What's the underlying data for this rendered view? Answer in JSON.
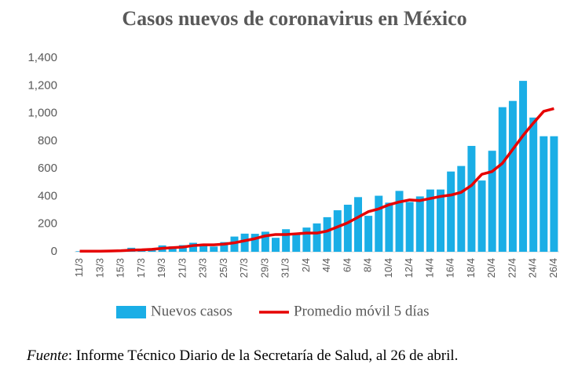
{
  "chart_data": {
    "type": "bar_line",
    "title": "Casos nuevos de coronavirus en México",
    "categories": [
      "11/3",
      null,
      "13/3",
      null,
      "15/3",
      null,
      "17/3",
      null,
      "19/3",
      null,
      "21/3",
      null,
      "23/3",
      null,
      "25/3",
      null,
      "27/3",
      null,
      "29/3",
      null,
      "31/3",
      null,
      "2/4",
      null,
      "4/4",
      null,
      "6/4",
      null,
      "8/4",
      null,
      "10/4",
      null,
      "12/4",
      null,
      "14/4",
      null,
      "16/4",
      null,
      "18/4",
      null,
      "20/4",
      null,
      "22/4",
      null,
      "24/4",
      null,
      "26/4"
    ],
    "series": [
      {
        "name": "Nuevos casos",
        "type": "bar",
        "color": "#1aaee6",
        "values": [
          4,
          4,
          4,
          14,
          12,
          29,
          11,
          25,
          46,
          39,
          48,
          65,
          51,
          38,
          70,
          110,
          131,
          130,
          145,
          101,
          163,
          130,
          175,
          205,
          250,
          300,
          340,
          395,
          260,
          405,
          355,
          440,
          360,
          400,
          450,
          450,
          580,
          620,
          765,
          515,
          730,
          1045,
          1090,
          1235,
          970,
          835,
          835
        ]
      },
      {
        "name": "Promedio móvil 5 días",
        "type": "line",
        "color": "#e60000",
        "values": [
          4,
          4,
          4,
          6,
          8,
          12,
          14,
          18,
          25,
          30,
          34,
          45,
          50,
          50,
          55,
          65,
          80,
          95,
          115,
          125,
          125,
          130,
          135,
          135,
          150,
          180,
          210,
          250,
          290,
          310,
          340,
          360,
          375,
          370,
          385,
          400,
          410,
          430,
          480,
          560,
          580,
          640,
          740,
          840,
          930,
          1015,
          1035
        ]
      }
    ],
    "ylim": [
      0,
      1400
    ],
    "yticks": [
      0,
      200,
      400,
      600,
      800,
      {
        "value": 1000,
        "label": "1,000"
      },
      {
        "value": 1200,
        "label": "1,200"
      },
      {
        "value": 1400,
        "label": "1,400"
      }
    ],
    "legend": "bottom",
    "source_label": "Fuente",
    "source_text": ": Informe Técnico Diario de la Secretaría de Salud, al 26 de abril."
  }
}
